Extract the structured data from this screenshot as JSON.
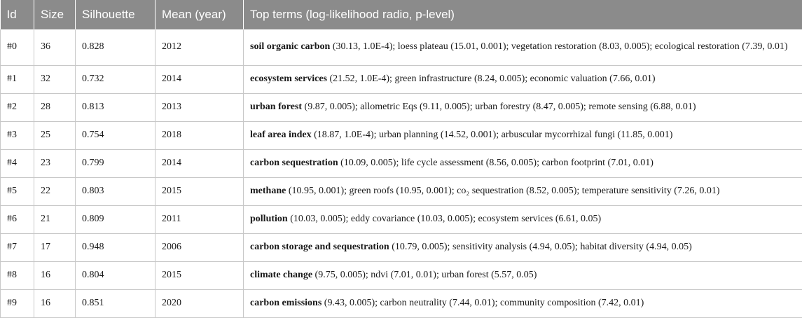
{
  "table": {
    "headers": {
      "id": "Id",
      "size": "Size",
      "silhouette": "Silhouette",
      "mean_year": "Mean (year)",
      "top_terms": "Top terms (log-likelihood radio, p-level)"
    },
    "rows": [
      {
        "id": "#0",
        "size": "36",
        "silhouette": "0.828",
        "mean_year": "2012",
        "key_term": "soil organic carbon",
        "rest": " (30.13, 1.0E-4); loess plateau (15.01, 0.001); vegetation restoration (8.03, 0.005); ecological restoration (7.39, 0.01)"
      },
      {
        "id": "#1",
        "size": "32",
        "silhouette": "0.732",
        "mean_year": "2014",
        "key_term": "ecosystem services",
        "rest": " (21.52, 1.0E-4); green infrastructure (8.24, 0.005); economic valuation (7.66, 0.01)"
      },
      {
        "id": "#2",
        "size": "28",
        "silhouette": "0.813",
        "mean_year": "2013",
        "key_term": "urban forest",
        "rest": " (9.87, 0.005); allometric Eqs (9.11, 0.005); urban forestry (8.47, 0.005); remote sensing (6.88, 0.01)"
      },
      {
        "id": "#3",
        "size": "25",
        "silhouette": "0.754",
        "mean_year": "2018",
        "key_term": "leaf area index",
        "rest": " (18.87, 1.0E-4); urban planning (14.52, 0.001); arbuscular mycorrhizal fungi (11.85, 0.001)"
      },
      {
        "id": "#4",
        "size": "23",
        "silhouette": "0.799",
        "mean_year": "2014",
        "key_term": "carbon sequestration",
        "rest": " (10.09, 0.005); life cycle assessment (8.56, 0.005); carbon footprint (7.01, 0.01)"
      },
      {
        "id": "#5",
        "size": "22",
        "silhouette": "0.803",
        "mean_year": "2015",
        "key_term": "methane",
        "rest": " (10.95, 0.001); green roofs (10.95, 0.001); co₂ sequestration (8.52, 0.005); temperature sensitivity (7.26, 0.01)"
      },
      {
        "id": "#6",
        "size": "21",
        "silhouette": "0.809",
        "mean_year": "2011",
        "key_term": "pollution",
        "rest": " (10.03, 0.005); eddy covariance (10.03, 0.005); ecosystem services (6.61, 0.05)"
      },
      {
        "id": "#7",
        "size": "17",
        "silhouette": "0.948",
        "mean_year": "2006",
        "key_term": "carbon storage and sequestration",
        "rest": " (10.79, 0.005); sensitivity analysis (4.94, 0.05); habitat diversity (4.94, 0.05)"
      },
      {
        "id": "#8",
        "size": "16",
        "silhouette": "0.804",
        "mean_year": "2015",
        "key_term": "climate change",
        "rest": " (9.75, 0.005); ndvi (7.01, 0.01); urban forest (5.57, 0.05)"
      },
      {
        "id": "#9",
        "size": "16",
        "silhouette": "0.851",
        "mean_year": "2020",
        "key_term": "carbon emissions",
        "rest": " (9.43, 0.005); carbon neutrality (7.44, 0.01); community composition (7.42, 0.01)"
      }
    ]
  }
}
